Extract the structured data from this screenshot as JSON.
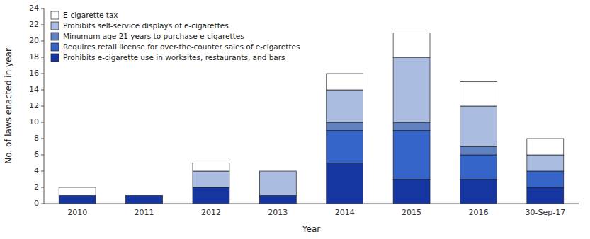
{
  "chart_data": {
    "type": "bar",
    "stacked": true,
    "xlabel": "Year",
    "ylabel": "No. of laws enacted in year",
    "categories": [
      "2010",
      "2011",
      "2012",
      "2013",
      "2014",
      "2015",
      "2016",
      "30-Sep-17"
    ],
    "series": [
      {
        "name": "Prohibits e-cigarette use in worksites, restaurants, and bars",
        "color": "#1535a0",
        "values": [
          1,
          1,
          2,
          1,
          5,
          3,
          3,
          2
        ]
      },
      {
        "name": "Requires retail license for over-the-counter sales of e-cigarettes",
        "color": "#3565c8",
        "values": [
          0,
          0,
          0,
          0,
          4,
          6,
          3,
          2
        ]
      },
      {
        "name": "Minumum age 21 years to purchase e-cigarettes",
        "color": "#6080c0",
        "values": [
          0,
          0,
          0,
          0,
          1,
          1,
          1,
          0
        ]
      },
      {
        "name": "Prohibits self-service displays of e-cigarettes",
        "color": "#aabcdf",
        "values": [
          0,
          0,
          2,
          3,
          4,
          8,
          5,
          2
        ]
      },
      {
        "name": "E-cigarette tax",
        "color": "#ffffff",
        "values": [
          1,
          0,
          1,
          0,
          2,
          3,
          3,
          2
        ]
      }
    ],
    "ylim": [
      0,
      24
    ],
    "yticks": [
      0,
      2,
      4,
      6,
      8,
      10,
      12,
      14,
      16,
      18,
      20,
      22,
      24
    ],
    "grid": false,
    "legend": "upper left"
  }
}
